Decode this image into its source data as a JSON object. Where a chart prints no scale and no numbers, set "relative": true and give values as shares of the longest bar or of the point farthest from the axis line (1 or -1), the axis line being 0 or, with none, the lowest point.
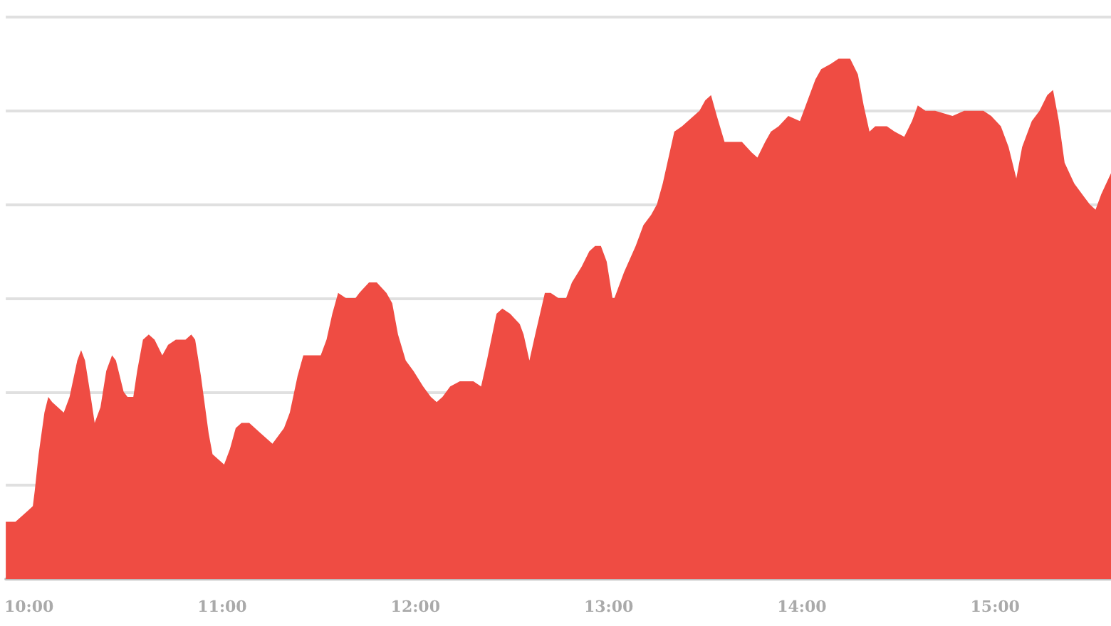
{
  "chart_data": {
    "type": "area",
    "relative": true,
    "grid": "y",
    "color": "#ef4c43",
    "xlim": [
      9.88,
      15.6
    ],
    "xticks": [
      {
        "value": 10,
        "label": "10:00"
      },
      {
        "value": 11,
        "label": "11:00"
      },
      {
        "value": 12,
        "label": "12:00"
      },
      {
        "value": 13,
        "label": "13:00"
      },
      {
        "value": 14,
        "label": "14:00"
      },
      {
        "value": 15,
        "label": "15:00"
      }
    ],
    "x": [
      9.88,
      9.93,
      9.99,
      10.02,
      10.03,
      10.05,
      10.08,
      10.1,
      10.12,
      10.18,
      10.21,
      10.25,
      10.27,
      10.29,
      10.32,
      10.34,
      10.37,
      10.4,
      10.43,
      10.45,
      10.49,
      10.51,
      10.54,
      10.56,
      10.59,
      10.62,
      10.65,
      10.69,
      10.72,
      10.76,
      10.81,
      10.84,
      10.86,
      10.89,
      10.93,
      10.95,
      10.98,
      11.01,
      11.04,
      11.07,
      11.1,
      11.14,
      11.2,
      11.26,
      11.28,
      11.32,
      11.35,
      11.39,
      11.42,
      11.51,
      11.54,
      11.57,
      11.6,
      11.64,
      11.69,
      11.71,
      11.76,
      11.8,
      11.85,
      11.88,
      11.91,
      11.95,
      11.99,
      12.04,
      12.08,
      12.11,
      12.14,
      12.18,
      12.23,
      12.3,
      12.34,
      12.37,
      12.42,
      12.45,
      12.49,
      12.54,
      12.56,
      12.59,
      12.62,
      12.67,
      12.7,
      12.74,
      12.78,
      12.81,
      12.86,
      12.9,
      12.93,
      12.96,
      12.99,
      13.02,
      13.03,
      13.08,
      13.14,
      13.18,
      13.22,
      13.25,
      13.28,
      13.31,
      13.34,
      13.38,
      13.44,
      13.47,
      13.5,
      13.53,
      13.56,
      13.6,
      13.65,
      13.69,
      13.74,
      13.77,
      13.81,
      13.84,
      13.88,
      13.93,
      13.99,
      14.03,
      14.07,
      14.1,
      14.15,
      14.19,
      14.25,
      14.29,
      14.32,
      14.35,
      14.38,
      14.44,
      14.48,
      14.53,
      14.57,
      14.6,
      14.64,
      14.69,
      14.78,
      14.84,
      14.94,
      14.98,
      15.03,
      15.07,
      15.11,
      15.14,
      15.19,
      15.23,
      15.27,
      15.3,
      15.33,
      15.36,
      15.41,
      15.45,
      15.49,
      15.52,
      15.55,
      15.6
    ],
    "values": [
      0.11,
      0.11,
      0.13,
      0.14,
      0.17,
      0.24,
      0.32,
      0.35,
      0.34,
      0.32,
      0.35,
      0.42,
      0.44,
      0.42,
      0.35,
      0.3,
      0.33,
      0.4,
      0.43,
      0.42,
      0.36,
      0.35,
      0.35,
      0.4,
      0.46,
      0.47,
      0.46,
      0.43,
      0.45,
      0.46,
      0.46,
      0.47,
      0.46,
      0.39,
      0.28,
      0.24,
      0.23,
      0.22,
      0.25,
      0.29,
      0.3,
      0.3,
      0.28,
      0.26,
      0.27,
      0.29,
      0.32,
      0.39,
      0.43,
      0.43,
      0.46,
      0.51,
      0.55,
      0.54,
      0.54,
      0.55,
      0.57,
      0.57,
      0.55,
      0.53,
      0.47,
      0.42,
      0.4,
      0.37,
      0.35,
      0.34,
      0.35,
      0.37,
      0.38,
      0.38,
      0.37,
      0.42,
      0.51,
      0.52,
      0.51,
      0.49,
      0.47,
      0.42,
      0.47,
      0.55,
      0.55,
      0.54,
      0.54,
      0.57,
      0.6,
      0.63,
      0.64,
      0.64,
      0.61,
      0.54,
      0.54,
      0.59,
      0.64,
      0.68,
      0.7,
      0.72,
      0.76,
      0.81,
      0.86,
      0.87,
      0.89,
      0.9,
      0.92,
      0.93,
      0.89,
      0.84,
      0.84,
      0.84,
      0.82,
      0.81,
      0.84,
      0.86,
      0.87,
      0.89,
      0.88,
      0.92,
      0.96,
      0.98,
      0.99,
      1,
      1,
      0.97,
      0.91,
      0.86,
      0.87,
      0.87,
      0.86,
      0.85,
      0.88,
      0.91,
      0.9,
      0.9,
      0.89,
      0.9,
      0.9,
      0.89,
      0.87,
      0.83,
      0.77,
      0.83,
      0.88,
      0.9,
      0.93,
      0.94,
      0.88,
      0.8,
      0.76,
      0.74,
      0.72,
      0.71,
      0.74,
      0.78
    ]
  }
}
